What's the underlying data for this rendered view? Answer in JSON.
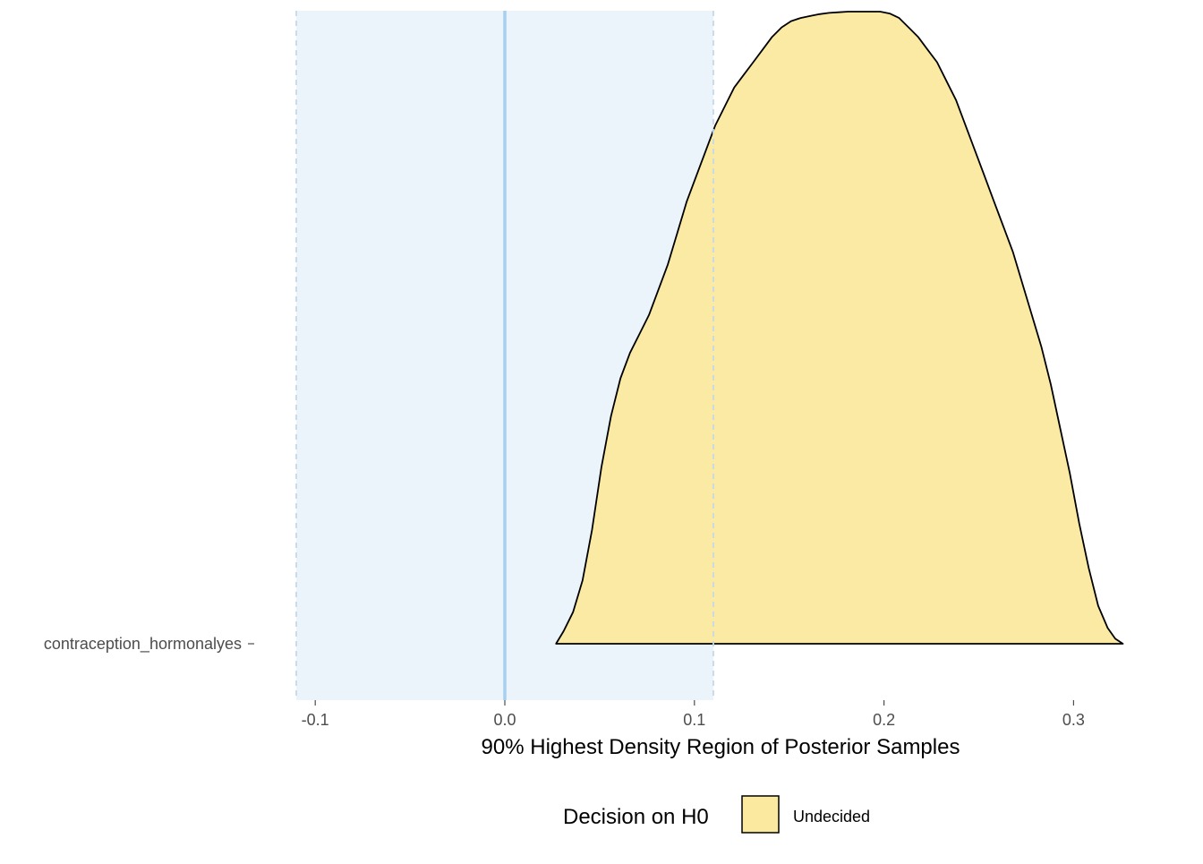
{
  "chart_data": {
    "type": "area",
    "subtype": "density-ridge",
    "title": "",
    "xlabel": "90% Highest Density Region of Posterior Samples",
    "ylabel": "",
    "xlim": [
      -0.11,
      0.33
    ],
    "x_ticks": [
      -0.1,
      0.0,
      0.1,
      0.2,
      0.3
    ],
    "x_tick_labels": [
      "-0.1",
      "0.0",
      "0.1",
      "0.2",
      "0.3"
    ],
    "categories": [
      "contraception_hormonalyes"
    ],
    "grid": false,
    "rope": {
      "low": -0.11,
      "high": 0.11,
      "fill_color": "#ebf3fb",
      "border_color": "#c5d9e8"
    },
    "reference_line": {
      "x": 0.0,
      "color": "#a8cfee"
    },
    "series": [
      {
        "category": "contraception_hormonalyes",
        "decision": "Undecided",
        "fill_color": "#fbe9a0",
        "outline_color": "#000000",
        "density": {
          "x": [
            0.027,
            0.031,
            0.036,
            0.041,
            0.046,
            0.051,
            0.056,
            0.061,
            0.066,
            0.071,
            0.076,
            0.081,
            0.086,
            0.091,
            0.096,
            0.101,
            0.106,
            0.111,
            0.116,
            0.121,
            0.126,
            0.131,
            0.136,
            0.141,
            0.146,
            0.151,
            0.156,
            0.161,
            0.166,
            0.171,
            0.176,
            0.181,
            0.186,
            0.191,
            0.194,
            0.198,
            0.203,
            0.208,
            0.213,
            0.218,
            0.223,
            0.228,
            0.233,
            0.238,
            0.243,
            0.248,
            0.253,
            0.258,
            0.263,
            0.268,
            0.273,
            0.278,
            0.283,
            0.288,
            0.293,
            0.298,
            0.303,
            0.308,
            0.313,
            0.318,
            0.322,
            0.326
          ],
          "y": [
            0.0,
            0.02,
            0.05,
            0.1,
            0.18,
            0.28,
            0.36,
            0.42,
            0.46,
            0.49,
            0.52,
            0.56,
            0.6,
            0.65,
            0.7,
            0.74,
            0.78,
            0.82,
            0.85,
            0.88,
            0.9,
            0.92,
            0.94,
            0.96,
            0.975,
            0.985,
            0.99,
            0.993,
            0.996,
            0.998,
            0.999,
            1.0,
            1.0,
            1.0,
            1.0,
            1.0,
            0.997,
            0.99,
            0.975,
            0.96,
            0.94,
            0.92,
            0.89,
            0.86,
            0.82,
            0.78,
            0.74,
            0.7,
            0.66,
            0.62,
            0.57,
            0.52,
            0.47,
            0.41,
            0.34,
            0.27,
            0.19,
            0.12,
            0.06,
            0.025,
            0.008,
            0.0
          ]
        }
      }
    ],
    "legend": {
      "title": "Decision on H0",
      "position": "bottom",
      "entries": [
        {
          "label": "Undecided",
          "color": "#fbe9a0"
        }
      ]
    }
  }
}
